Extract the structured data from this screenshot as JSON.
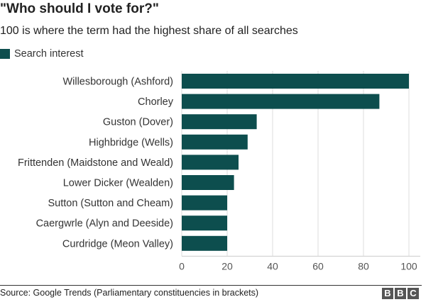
{
  "chart_data": {
    "type": "bar",
    "orientation": "horizontal",
    "title": "\"Who should I vote for?\"",
    "subtitle": "100 is where the term had the highest share of all searches",
    "legend": [
      "Search interest"
    ],
    "categories": [
      "Willesborough (Ashford)",
      "Chorley",
      "Guston (Dover)",
      "Highbridge (Wells)",
      "Frittenden (Maidstone and Weald)",
      "Lower Dicker (Wealden)",
      "Sutton (Sutton and Cheam)",
      "Caergwrle (Alyn and Deeside)",
      "Curdridge (Meon Valley)"
    ],
    "values": [
      100,
      87,
      33,
      29,
      25,
      23,
      20,
      20,
      20
    ],
    "xlim": [
      0,
      100
    ],
    "ticks": [
      "0",
      "20",
      "40",
      "60",
      "80",
      "100"
    ],
    "grid": true,
    "color": "#0d4e4e"
  },
  "footer": {
    "source": "Source: Google Trends (Parliamentary constituencies in brackets)",
    "logo": [
      "B",
      "B",
      "C"
    ]
  }
}
